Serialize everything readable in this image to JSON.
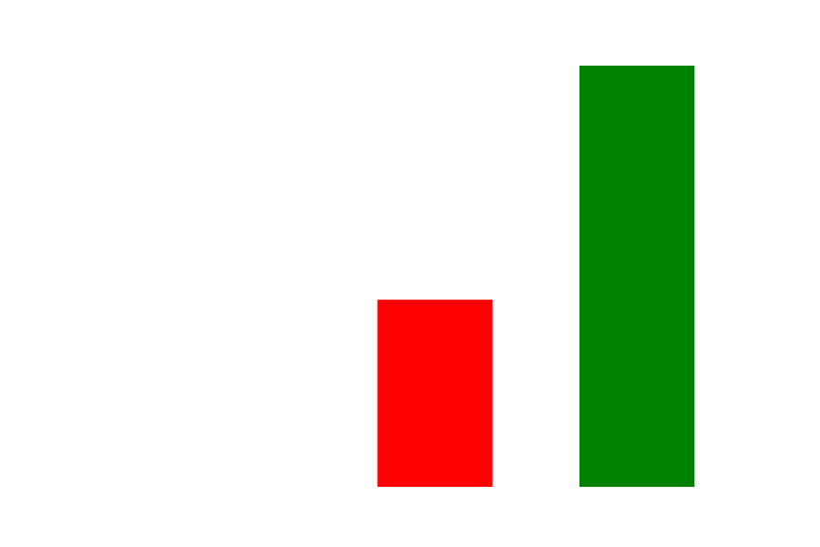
{
  "chart_data": {
    "type": "bar",
    "categories": [
      "",
      "",
      ""
    ],
    "values": [
      0,
      4,
      9
    ],
    "colors": [
      "#ffffff",
      "#ff0000",
      "#008000"
    ],
    "title": "",
    "xlabel": "",
    "ylabel": "",
    "ylim": [
      0,
      9
    ],
    "grid": false,
    "axes_visible": false
  }
}
